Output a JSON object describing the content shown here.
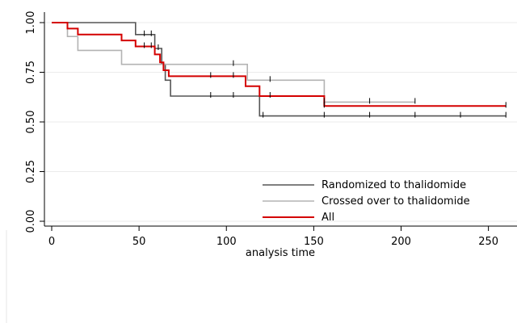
{
  "chart_data": {
    "type": "line",
    "title": "",
    "xlabel": "analysis time",
    "ylabel": "",
    "xlim": [
      0,
      260
    ],
    "ylim": [
      0,
      1
    ],
    "xticks": [
      "0",
      "50",
      "100",
      "150",
      "200",
      "250"
    ],
    "yticks": [
      "0.00",
      "0.25",
      "0.50",
      "0.75",
      "1.00"
    ],
    "grid": true,
    "legend_position": "bottom-right",
    "series": [
      {
        "name": "Randomized to thalidomide",
        "color": "#555555",
        "steps": [
          [
            0,
            1.0
          ],
          [
            48,
            1.0
          ],
          [
            48,
            0.94
          ],
          [
            59,
            0.94
          ],
          [
            59,
            0.87
          ],
          [
            63,
            0.87
          ],
          [
            63,
            0.79
          ],
          [
            65,
            0.79
          ],
          [
            65,
            0.71
          ],
          [
            68,
            0.71
          ],
          [
            68,
            0.63
          ],
          [
            119,
            0.63
          ],
          [
            119,
            0.53
          ],
          [
            260,
            0.53
          ]
        ],
        "censor_x": [
          53,
          57,
          61,
          91,
          104,
          121,
          156,
          182,
          208,
          234,
          260
        ]
      },
      {
        "name": "Crossed over to thalidomide",
        "color": "#b3b3b3",
        "steps": [
          [
            0,
            1.0
          ],
          [
            9,
            1.0
          ],
          [
            9,
            0.93
          ],
          [
            15,
            0.93
          ],
          [
            15,
            0.86
          ],
          [
            40,
            0.86
          ],
          [
            40,
            0.79
          ],
          [
            112,
            0.79
          ],
          [
            112,
            0.71
          ],
          [
            156,
            0.71
          ],
          [
            156,
            0.6
          ],
          [
            208,
            0.6
          ]
        ],
        "censor_x": [
          104,
          125,
          156,
          182,
          208
        ]
      },
      {
        "name": "All",
        "color": "#d40000",
        "steps": [
          [
            0,
            1.0
          ],
          [
            9,
            1.0
          ],
          [
            9,
            0.97
          ],
          [
            15,
            0.97
          ],
          [
            15,
            0.94
          ],
          [
            40,
            0.94
          ],
          [
            40,
            0.91
          ],
          [
            48,
            0.91
          ],
          [
            48,
            0.88
          ],
          [
            59,
            0.88
          ],
          [
            59,
            0.84
          ],
          [
            62,
            0.84
          ],
          [
            62,
            0.8
          ],
          [
            64,
            0.8
          ],
          [
            64,
            0.76
          ],
          [
            67,
            0.76
          ],
          [
            67,
            0.73
          ],
          [
            111,
            0.73
          ],
          [
            111,
            0.68
          ],
          [
            119,
            0.68
          ],
          [
            119,
            0.63
          ],
          [
            156,
            0.63
          ],
          [
            156,
            0.58
          ],
          [
            260,
            0.58
          ]
        ],
        "censor_x": [
          53,
          57,
          91,
          104,
          125,
          156,
          260
        ]
      }
    ]
  }
}
